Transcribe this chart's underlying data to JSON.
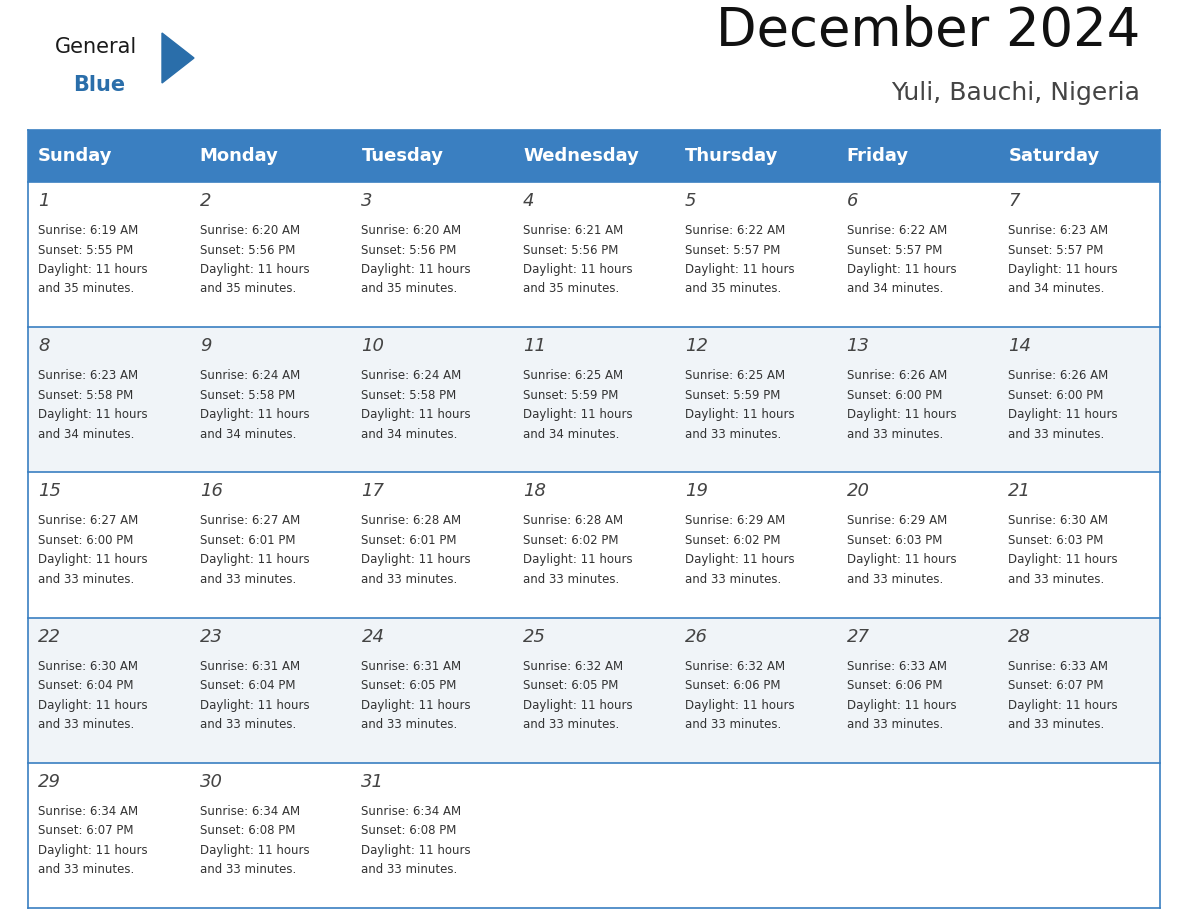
{
  "title": "December 2024",
  "subtitle": "Yuli, Bauchi, Nigeria",
  "days_of_week": [
    "Sunday",
    "Monday",
    "Tuesday",
    "Wednesday",
    "Thursday",
    "Friday",
    "Saturday"
  ],
  "header_bg": "#3A7FC1",
  "header_text_color": "#FFFFFF",
  "cell_bg_odd": "#FFFFFF",
  "cell_bg_even": "#F0F4F8",
  "border_color": "#3A7FC1",
  "text_color": "#333333",
  "calendar_data": [
    [
      {
        "day": 1,
        "sunrise": "6:19 AM",
        "sunset": "5:55 PM",
        "daylight": "11 hours",
        "daylight2": "and 35 minutes."
      },
      {
        "day": 2,
        "sunrise": "6:20 AM",
        "sunset": "5:56 PM",
        "daylight": "11 hours",
        "daylight2": "and 35 minutes."
      },
      {
        "day": 3,
        "sunrise": "6:20 AM",
        "sunset": "5:56 PM",
        "daylight": "11 hours",
        "daylight2": "and 35 minutes."
      },
      {
        "day": 4,
        "sunrise": "6:21 AM",
        "sunset": "5:56 PM",
        "daylight": "11 hours",
        "daylight2": "and 35 minutes."
      },
      {
        "day": 5,
        "sunrise": "6:22 AM",
        "sunset": "5:57 PM",
        "daylight": "11 hours",
        "daylight2": "and 35 minutes."
      },
      {
        "day": 6,
        "sunrise": "6:22 AM",
        "sunset": "5:57 PM",
        "daylight": "11 hours",
        "daylight2": "and 34 minutes."
      },
      {
        "day": 7,
        "sunrise": "6:23 AM",
        "sunset": "5:57 PM",
        "daylight": "11 hours",
        "daylight2": "and 34 minutes."
      }
    ],
    [
      {
        "day": 8,
        "sunrise": "6:23 AM",
        "sunset": "5:58 PM",
        "daylight": "11 hours",
        "daylight2": "and 34 minutes."
      },
      {
        "day": 9,
        "sunrise": "6:24 AM",
        "sunset": "5:58 PM",
        "daylight": "11 hours",
        "daylight2": "and 34 minutes."
      },
      {
        "day": 10,
        "sunrise": "6:24 AM",
        "sunset": "5:58 PM",
        "daylight": "11 hours",
        "daylight2": "and 34 minutes."
      },
      {
        "day": 11,
        "sunrise": "6:25 AM",
        "sunset": "5:59 PM",
        "daylight": "11 hours",
        "daylight2": "and 34 minutes."
      },
      {
        "day": 12,
        "sunrise": "6:25 AM",
        "sunset": "5:59 PM",
        "daylight": "11 hours",
        "daylight2": "and 33 minutes."
      },
      {
        "day": 13,
        "sunrise": "6:26 AM",
        "sunset": "6:00 PM",
        "daylight": "11 hours",
        "daylight2": "and 33 minutes."
      },
      {
        "day": 14,
        "sunrise": "6:26 AM",
        "sunset": "6:00 PM",
        "daylight": "11 hours",
        "daylight2": "and 33 minutes."
      }
    ],
    [
      {
        "day": 15,
        "sunrise": "6:27 AM",
        "sunset": "6:00 PM",
        "daylight": "11 hours",
        "daylight2": "and 33 minutes."
      },
      {
        "day": 16,
        "sunrise": "6:27 AM",
        "sunset": "6:01 PM",
        "daylight": "11 hours",
        "daylight2": "and 33 minutes."
      },
      {
        "day": 17,
        "sunrise": "6:28 AM",
        "sunset": "6:01 PM",
        "daylight": "11 hours",
        "daylight2": "and 33 minutes."
      },
      {
        "day": 18,
        "sunrise": "6:28 AM",
        "sunset": "6:02 PM",
        "daylight": "11 hours",
        "daylight2": "and 33 minutes."
      },
      {
        "day": 19,
        "sunrise": "6:29 AM",
        "sunset": "6:02 PM",
        "daylight": "11 hours",
        "daylight2": "and 33 minutes."
      },
      {
        "day": 20,
        "sunrise": "6:29 AM",
        "sunset": "6:03 PM",
        "daylight": "11 hours",
        "daylight2": "and 33 minutes."
      },
      {
        "day": 21,
        "sunrise": "6:30 AM",
        "sunset": "6:03 PM",
        "daylight": "11 hours",
        "daylight2": "and 33 minutes."
      }
    ],
    [
      {
        "day": 22,
        "sunrise": "6:30 AM",
        "sunset": "6:04 PM",
        "daylight": "11 hours",
        "daylight2": "and 33 minutes."
      },
      {
        "day": 23,
        "sunrise": "6:31 AM",
        "sunset": "6:04 PM",
        "daylight": "11 hours",
        "daylight2": "and 33 minutes."
      },
      {
        "day": 24,
        "sunrise": "6:31 AM",
        "sunset": "6:05 PM",
        "daylight": "11 hours",
        "daylight2": "and 33 minutes."
      },
      {
        "day": 25,
        "sunrise": "6:32 AM",
        "sunset": "6:05 PM",
        "daylight": "11 hours",
        "daylight2": "and 33 minutes."
      },
      {
        "day": 26,
        "sunrise": "6:32 AM",
        "sunset": "6:06 PM",
        "daylight": "11 hours",
        "daylight2": "and 33 minutes."
      },
      {
        "day": 27,
        "sunrise": "6:33 AM",
        "sunset": "6:06 PM",
        "daylight": "11 hours",
        "daylight2": "and 33 minutes."
      },
      {
        "day": 28,
        "sunrise": "6:33 AM",
        "sunset": "6:07 PM",
        "daylight": "11 hours",
        "daylight2": "and 33 minutes."
      }
    ],
    [
      {
        "day": 29,
        "sunrise": "6:34 AM",
        "sunset": "6:07 PM",
        "daylight": "11 hours",
        "daylight2": "and 33 minutes."
      },
      {
        "day": 30,
        "sunrise": "6:34 AM",
        "sunset": "6:08 PM",
        "daylight": "11 hours",
        "daylight2": "and 33 minutes."
      },
      {
        "day": 31,
        "sunrise": "6:34 AM",
        "sunset": "6:08 PM",
        "daylight": "11 hours",
        "daylight2": "and 33 minutes."
      },
      null,
      null,
      null,
      null
    ]
  ],
  "logo_general_color": "#1a1a1a",
  "logo_blue_color": "#2A6EAA",
  "title_fontsize": 38,
  "subtitle_fontsize": 18,
  "header_fontsize": 13,
  "day_num_fontsize": 13,
  "cell_text_fontsize": 8.5
}
